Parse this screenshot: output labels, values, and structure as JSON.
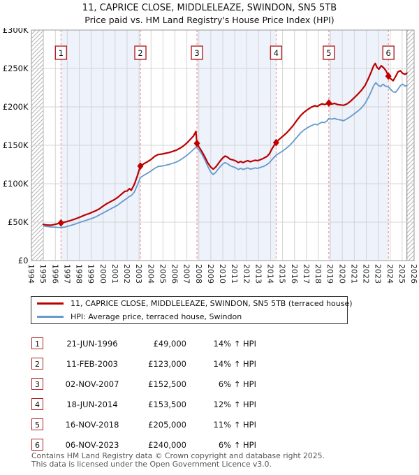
{
  "title": {
    "line1": "11, CAPRICE CLOSE, MIDDLELEAZE, SWINDON, SN5 5TB",
    "line2": "Price paid vs. HM Land Registry's House Price Index (HPI)"
  },
  "legend": [
    {
      "label": "11, CAPRICE CLOSE, MIDDLELEAZE, SWINDON, SN5 5TB (terraced house)",
      "color": "#bb0000"
    },
    {
      "label": "HPI: Average price, terraced house, Swindon",
      "color": "#6699cc"
    }
  ],
  "chart_data": {
    "type": "line",
    "title": "11, CAPRICE CLOSE, MIDDLELEAZE, SWINDON, SN5 5TB — Price paid vs. HPI",
    "x_axis": {
      "range": [
        1994,
        2026
      ],
      "ticks": [
        1994,
        1995,
        1996,
        1997,
        1998,
        1999,
        2000,
        2001,
        2002,
        2003,
        2004,
        2005,
        2006,
        2007,
        2008,
        2009,
        2010,
        2011,
        2012,
        2013,
        2014,
        2015,
        2016,
        2017,
        2018,
        2019,
        2020,
        2021,
        2022,
        2023,
        2024,
        2025,
        2026
      ]
    },
    "y_axis": {
      "unit": "£K",
      "range": [
        0,
        300
      ],
      "ticks": [
        {
          "value": 0,
          "label": "£0"
        },
        {
          "value": 50,
          "label": "£50K"
        },
        {
          "value": 100,
          "label": "£100K"
        },
        {
          "value": 150,
          "label": "£150K"
        },
        {
          "value": 200,
          "label": "£200K"
        },
        {
          "value": 250,
          "label": "£250K"
        },
        {
          "value": 300,
          "label": "£300K"
        }
      ]
    },
    "grid": true,
    "data_range": [
      1995.0,
      2025.4
    ],
    "shaded_spans": [
      [
        1996.47,
        2003.11
      ],
      [
        2007.84,
        2014.46
      ],
      [
        2018.87,
        2023.85
      ]
    ],
    "colors": {
      "price_line": "#bb0000",
      "hpi_line": "#6699cc",
      "marker": "#c00000",
      "event_line": "#f28080",
      "band_fill": "#edf2fb",
      "grid_line": "#d4d4d4",
      "plot_border": "#999999",
      "hatch_line": "#b3b3b3"
    },
    "series": [
      {
        "name": "11, CAPRICE CLOSE, MIDDLELEAZE, SWINDON, SN5 5TB (terraced house)",
        "color": "#bb0000",
        "width": 2.2,
        "points": [
          [
            1995,
            47
          ],
          [
            1995.3,
            46.3
          ],
          [
            1995.6,
            46
          ],
          [
            1995.9,
            46.8
          ],
          [
            1996.2,
            48
          ],
          [
            1996.47,
            49
          ],
          [
            1996.8,
            50
          ],
          [
            1997,
            51
          ],
          [
            1997.3,
            52.3
          ],
          [
            1997.6,
            53.8
          ],
          [
            1997.9,
            55.5
          ],
          [
            1998.2,
            57.5
          ],
          [
            1998.5,
            59.5
          ],
          [
            1998.8,
            61
          ],
          [
            1999.1,
            63
          ],
          [
            1999.4,
            65
          ],
          [
            1999.7,
            67.5
          ],
          [
            2000,
            71
          ],
          [
            2000.3,
            74
          ],
          [
            2000.6,
            76.5
          ],
          [
            2000.9,
            79
          ],
          [
            2001.2,
            82
          ],
          [
            2001.5,
            86
          ],
          [
            2001.8,
            90
          ],
          [
            2002,
            90.5
          ],
          [
            2002.2,
            93.5
          ],
          [
            2002.35,
            91.5
          ],
          [
            2002.6,
            99
          ],
          [
            2002.85,
            110
          ],
          [
            2003.11,
            123
          ],
          [
            2003.4,
            126
          ],
          [
            2003.7,
            128.5
          ],
          [
            2004,
            131.5
          ],
          [
            2004.3,
            135.5
          ],
          [
            2004.6,
            138
          ],
          [
            2004.9,
            138.5
          ],
          [
            2005.2,
            139.5
          ],
          [
            2005.5,
            140.5
          ],
          [
            2005.8,
            142
          ],
          [
            2006.1,
            143.5
          ],
          [
            2006.4,
            146
          ],
          [
            2006.7,
            149
          ],
          [
            2007,
            153
          ],
          [
            2007.3,
            158
          ],
          [
            2007.55,
            162
          ],
          [
            2007.75,
            168
          ],
          [
            2007.84,
            152.5
          ],
          [
            2008,
            148
          ],
          [
            2008.25,
            142
          ],
          [
            2008.5,
            135
          ],
          [
            2008.75,
            127
          ],
          [
            2009,
            121.5
          ],
          [
            2009.2,
            119
          ],
          [
            2009.4,
            121.5
          ],
          [
            2009.6,
            125.5
          ],
          [
            2009.8,
            130
          ],
          [
            2010,
            133.5
          ],
          [
            2010.2,
            136
          ],
          [
            2010.4,
            134.5
          ],
          [
            2010.6,
            132
          ],
          [
            2010.85,
            131
          ],
          [
            2011.1,
            129.5
          ],
          [
            2011.3,
            127.5
          ],
          [
            2011.5,
            129
          ],
          [
            2011.7,
            127.5
          ],
          [
            2011.9,
            129
          ],
          [
            2012.1,
            130
          ],
          [
            2012.3,
            128.5
          ],
          [
            2012.5,
            129.5
          ],
          [
            2012.7,
            130.5
          ],
          [
            2012.9,
            130
          ],
          [
            2013.1,
            131
          ],
          [
            2013.4,
            133
          ],
          [
            2013.7,
            135.5
          ],
          [
            2013.9,
            139
          ],
          [
            2014.1,
            145
          ],
          [
            2014.3,
            150
          ],
          [
            2014.46,
            153.5
          ],
          [
            2014.7,
            157.5
          ],
          [
            2015,
            161.5
          ],
          [
            2015.3,
            165.5
          ],
          [
            2015.6,
            170.5
          ],
          [
            2015.9,
            176
          ],
          [
            2016.2,
            182.5
          ],
          [
            2016.5,
            188.5
          ],
          [
            2016.8,
            193
          ],
          [
            2017.1,
            196.5
          ],
          [
            2017.4,
            199.5
          ],
          [
            2017.7,
            201.5
          ],
          [
            2017.9,
            200.5
          ],
          [
            2018.1,
            202.5
          ],
          [
            2018.3,
            204
          ],
          [
            2018.5,
            203
          ],
          [
            2018.7,
            204
          ],
          [
            2018.87,
            205
          ],
          [
            2019.1,
            203.5
          ],
          [
            2019.35,
            204.5
          ],
          [
            2019.6,
            203
          ],
          [
            2019.85,
            202.5
          ],
          [
            2020.1,
            202
          ],
          [
            2020.4,
            204
          ],
          [
            2020.7,
            207.5
          ],
          [
            2021,
            212
          ],
          [
            2021.3,
            216.5
          ],
          [
            2021.6,
            221.5
          ],
          [
            2021.9,
            228
          ],
          [
            2022.15,
            236
          ],
          [
            2022.4,
            245
          ],
          [
            2022.6,
            253
          ],
          [
            2022.75,
            256.5
          ],
          [
            2022.9,
            251.5
          ],
          [
            2023.05,
            249
          ],
          [
            2023.25,
            253.5
          ],
          [
            2023.45,
            251
          ],
          [
            2023.65,
            247
          ],
          [
            2023.85,
            240
          ],
          [
            2024.05,
            236.5
          ],
          [
            2024.25,
            234
          ],
          [
            2024.45,
            239.5
          ],
          [
            2024.65,
            245.5
          ],
          [
            2024.85,
            247
          ],
          [
            2025.05,
            243.5
          ],
          [
            2025.25,
            242.5
          ],
          [
            2025.4,
            244
          ]
        ]
      },
      {
        "name": "HPI: Average price, terraced house, Swindon",
        "color": "#6699cc",
        "width": 1.8,
        "points": [
          [
            1995,
            45
          ],
          [
            1995.3,
            44.3
          ],
          [
            1995.6,
            43.8
          ],
          [
            1995.9,
            43.5
          ],
          [
            1996.2,
            43.2
          ],
          [
            1996.47,
            43
          ],
          [
            1996.8,
            43.6
          ],
          [
            1997,
            44.5
          ],
          [
            1997.3,
            45.8
          ],
          [
            1997.6,
            47.2
          ],
          [
            1997.9,
            48.8
          ],
          [
            1998.2,
            50.5
          ],
          [
            1998.5,
            52
          ],
          [
            1998.8,
            53.5
          ],
          [
            1999.1,
            55
          ],
          [
            1999.4,
            57
          ],
          [
            1999.7,
            59.5
          ],
          [
            2000,
            62
          ],
          [
            2000.3,
            64.5
          ],
          [
            2000.6,
            67
          ],
          [
            2000.9,
            69.5
          ],
          [
            2001.2,
            72
          ],
          [
            2001.5,
            75.5
          ],
          [
            2001.8,
            79
          ],
          [
            2002,
            81
          ],
          [
            2002.2,
            83.5
          ],
          [
            2002.35,
            84.5
          ],
          [
            2002.6,
            89
          ],
          [
            2002.85,
            98
          ],
          [
            2003.11,
            108
          ],
          [
            2003.4,
            111
          ],
          [
            2003.7,
            113.5
          ],
          [
            2004,
            116.5
          ],
          [
            2004.3,
            120
          ],
          [
            2004.6,
            122.5
          ],
          [
            2004.9,
            123
          ],
          [
            2005.2,
            124
          ],
          [
            2005.5,
            125
          ],
          [
            2005.8,
            126.5
          ],
          [
            2006.1,
            128
          ],
          [
            2006.4,
            130.5
          ],
          [
            2006.7,
            133.5
          ],
          [
            2007,
            137
          ],
          [
            2007.3,
            141
          ],
          [
            2007.55,
            144.5
          ],
          [
            2007.8,
            148
          ],
          [
            2008,
            144
          ],
          [
            2008.25,
            138.5
          ],
          [
            2008.5,
            131
          ],
          [
            2008.75,
            122.5
          ],
          [
            2009,
            115
          ],
          [
            2009.2,
            112
          ],
          [
            2009.4,
            114.5
          ],
          [
            2009.6,
            118.5
          ],
          [
            2009.8,
            122.5
          ],
          [
            2010,
            125.5
          ],
          [
            2010.2,
            127.5
          ],
          [
            2010.4,
            126
          ],
          [
            2010.6,
            123.5
          ],
          [
            2010.85,
            122
          ],
          [
            2011.1,
            120.5
          ],
          [
            2011.3,
            118.5
          ],
          [
            2011.5,
            120
          ],
          [
            2011.7,
            118.5
          ],
          [
            2011.9,
            119.5
          ],
          [
            2012.1,
            120.5
          ],
          [
            2012.3,
            119
          ],
          [
            2012.5,
            119.5
          ],
          [
            2012.7,
            120.5
          ],
          [
            2012.9,
            120
          ],
          [
            2013.1,
            121
          ],
          [
            2013.4,
            122.5
          ],
          [
            2013.7,
            125
          ],
          [
            2013.9,
            127.5
          ],
          [
            2014.1,
            131
          ],
          [
            2014.3,
            134.5
          ],
          [
            2014.46,
            137
          ],
          [
            2014.7,
            139.5
          ],
          [
            2015,
            142.5
          ],
          [
            2015.3,
            146
          ],
          [
            2015.6,
            150
          ],
          [
            2015.9,
            155
          ],
          [
            2016.2,
            160.5
          ],
          [
            2016.5,
            166
          ],
          [
            2016.8,
            170
          ],
          [
            2017.1,
            173
          ],
          [
            2017.4,
            175.5
          ],
          [
            2017.7,
            177.5
          ],
          [
            2017.9,
            176.5
          ],
          [
            2018.1,
            178.5
          ],
          [
            2018.3,
            180
          ],
          [
            2018.5,
            179.5
          ],
          [
            2018.7,
            181.5
          ],
          [
            2018.87,
            185
          ],
          [
            2019.1,
            184
          ],
          [
            2019.35,
            185
          ],
          [
            2019.6,
            183.5
          ],
          [
            2019.85,
            183
          ],
          [
            2020.1,
            182
          ],
          [
            2020.4,
            184.5
          ],
          [
            2020.7,
            187.5
          ],
          [
            2021,
            191
          ],
          [
            2021.3,
            194.5
          ],
          [
            2021.6,
            198.5
          ],
          [
            2021.9,
            204.5
          ],
          [
            2022.15,
            211.5
          ],
          [
            2022.4,
            219.5
          ],
          [
            2022.6,
            227
          ],
          [
            2022.8,
            231.5
          ],
          [
            2023,
            228
          ],
          [
            2023.2,
            226.5
          ],
          [
            2023.4,
            229.5
          ],
          [
            2023.6,
            227
          ],
          [
            2023.85,
            226
          ],
          [
            2024.05,
            222.5
          ],
          [
            2024.25,
            219.5
          ],
          [
            2024.45,
            219
          ],
          [
            2024.65,
            223
          ],
          [
            2024.85,
            227.5
          ],
          [
            2025.05,
            229.5
          ],
          [
            2025.25,
            227
          ],
          [
            2025.4,
            228
          ]
        ]
      }
    ],
    "transactions": [
      {
        "n": "1",
        "date": "21-JUN-1996",
        "price": "£49,000",
        "pct": "14% ↑ HPI",
        "year": 1996.47,
        "value": 49
      },
      {
        "n": "2",
        "date": "11-FEB-2003",
        "price": "£123,000",
        "pct": "14% ↑ HPI",
        "year": 2003.11,
        "value": 123
      },
      {
        "n": "3",
        "date": "02-NOV-2007",
        "price": "£152,500",
        "pct": "6% ↑ HPI",
        "year": 2007.84,
        "value": 152.5
      },
      {
        "n": "4",
        "date": "18-JUN-2014",
        "price": "£153,500",
        "pct": "12% ↑ HPI",
        "year": 2014.46,
        "value": 153.5
      },
      {
        "n": "5",
        "date": "16-NOV-2018",
        "price": "£205,000",
        "pct": "11% ↑ HPI",
        "year": 2018.87,
        "value": 205
      },
      {
        "n": "6",
        "date": "06-NOV-2023",
        "price": "£240,000",
        "pct": "6% ↑ HPI",
        "year": 2023.85,
        "value": 240
      }
    ]
  },
  "footer": {
    "line1": "Contains HM Land Registry data © Crown copyright and database right 2025.",
    "line2": "This data is licensed under the Open Government Licence v3.0."
  }
}
